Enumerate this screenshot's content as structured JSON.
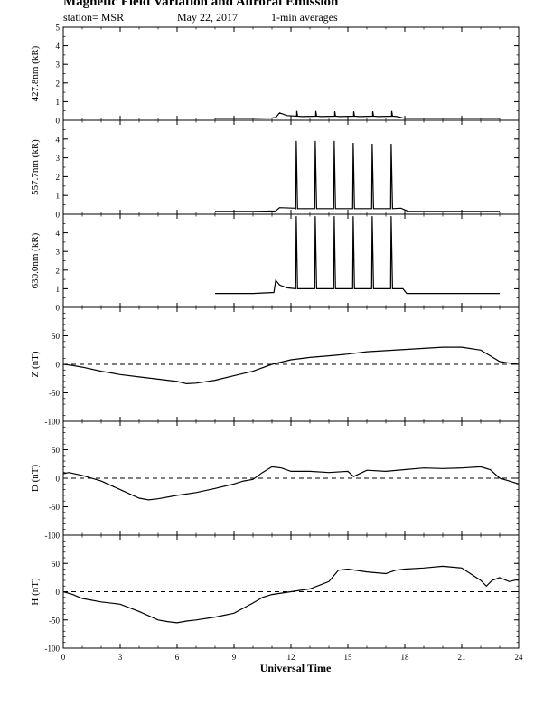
{
  "header": {
    "title": "Magnetic Field Variation and Auroral Emission",
    "station": "station= MSR",
    "date": "May 22, 2017",
    "averaging": "1-min averages"
  },
  "chart_data": [
    {
      "type": "line",
      "ylabel": "427.8nm (kR)",
      "ylim": [
        0,
        5
      ],
      "yticks": [
        "0",
        "1",
        "2",
        "3",
        "4",
        "5"
      ],
      "xlim": [
        0,
        24
      ],
      "zero_line": false,
      "series": [
        {
          "x": [
            8.0,
            9,
            10,
            11,
            11.2,
            11.4,
            11.8,
            12.3,
            12.31,
            12.35,
            12.6,
            13.3,
            13.31,
            13.35,
            13.6,
            14.3,
            14.31,
            14.35,
            14.6,
            15.3,
            15.31,
            15.35,
            15.6,
            16.3,
            16.31,
            16.35,
            16.6,
            17.3,
            17.31,
            17.35,
            17.6,
            18,
            20,
            23.0
          ],
          "y": [
            0.1,
            0.1,
            0.1,
            0.12,
            0.15,
            0.4,
            0.25,
            0.22,
            0.5,
            0.22,
            0.2,
            0.22,
            0.5,
            0.22,
            0.2,
            0.22,
            0.48,
            0.22,
            0.2,
            0.22,
            0.48,
            0.22,
            0.2,
            0.22,
            0.48,
            0.22,
            0.2,
            0.22,
            0.5,
            0.22,
            0.2,
            0.1,
            0.1,
            0.1
          ]
        }
      ]
    },
    {
      "type": "line",
      "ylabel": "557.7nm (kR)",
      "ylim": [
        0,
        5
      ],
      "yticks": [
        "0",
        "1",
        "2",
        "3",
        "4"
      ],
      "xlim": [
        0,
        24
      ],
      "zero_line": false,
      "series": [
        {
          "x": [
            8.0,
            10,
            11.2,
            11.4,
            12.2,
            12.25,
            12.28,
            12.35,
            13.2,
            13.25,
            13.28,
            13.35,
            14.2,
            14.25,
            14.28,
            14.35,
            15.2,
            15.25,
            15.28,
            15.35,
            16.2,
            16.25,
            16.28,
            16.35,
            17.2,
            17.25,
            17.28,
            17.35,
            17.8,
            18.2,
            20,
            23.0
          ],
          "y": [
            0.15,
            0.15,
            0.18,
            0.35,
            0.32,
            0.3,
            3.9,
            0.3,
            0.3,
            0.3,
            3.9,
            0.3,
            0.3,
            0.3,
            3.9,
            0.3,
            0.3,
            0.3,
            3.8,
            0.3,
            0.3,
            0.3,
            3.75,
            0.3,
            0.3,
            0.3,
            3.75,
            0.3,
            0.32,
            0.15,
            0.15,
            0.15
          ]
        }
      ]
    },
    {
      "type": "line",
      "ylabel": "630.0nm (kR)",
      "ylim": [
        0,
        5
      ],
      "yticks": [
        "0",
        "1",
        "2",
        "3",
        "4"
      ],
      "xlim": [
        0,
        24
      ],
      "zero_line": false,
      "series": [
        {
          "x": [
            8.0,
            10,
            11.1,
            11.2,
            11.4,
            11.8,
            12.25,
            12.28,
            12.35,
            13.25,
            13.28,
            13.35,
            14.25,
            14.28,
            14.35,
            15.25,
            15.28,
            15.35,
            16.25,
            16.28,
            16.35,
            17.25,
            17.28,
            17.35,
            17.9,
            18.1,
            20,
            23.0
          ],
          "y": [
            0.75,
            0.75,
            0.8,
            1.45,
            1.2,
            1.05,
            1.0,
            4.9,
            1.0,
            1.0,
            4.9,
            1.0,
            1.0,
            4.9,
            1.0,
            1.0,
            4.9,
            1.0,
            1.0,
            4.9,
            1.0,
            1.0,
            4.9,
            1.0,
            1.0,
            0.75,
            0.75,
            0.75
          ]
        }
      ]
    },
    {
      "type": "line",
      "ylabel": "Z (nT)",
      "ylim": [
        -100,
        100
      ],
      "yticks": [
        "-100",
        "-50",
        "0",
        "50"
      ],
      "xlim": [
        0,
        24
      ],
      "zero_line": true,
      "series": [
        {
          "x": [
            0,
            0.5,
            1,
            2,
            3,
            4,
            5,
            5.5,
            6,
            6.5,
            7,
            8,
            9,
            10,
            11,
            12,
            13,
            14,
            15,
            16,
            17,
            18,
            19,
            20,
            21,
            22,
            22.5,
            23,
            23.5,
            24
          ],
          "y": [
            0,
            -2,
            -5,
            -12,
            -18,
            -22,
            -26,
            -28,
            -30,
            -34,
            -33,
            -28,
            -20,
            -12,
            0,
            8,
            12,
            15,
            18,
            22,
            24,
            26,
            28,
            30,
            30,
            25,
            15,
            5,
            2,
            0
          ]
        }
      ]
    },
    {
      "type": "line",
      "ylabel": "D (nT)",
      "ylim": [
        -100,
        100
      ],
      "yticks": [
        "-100",
        "-50",
        "0",
        "50"
      ],
      "xlim": [
        0,
        24
      ],
      "zero_line": true,
      "series": [
        {
          "x": [
            0,
            0.3,
            1,
            2,
            3,
            4,
            4.5,
            5,
            6,
            7,
            8,
            9,
            9.5,
            10,
            10.5,
            11,
            11.5,
            12,
            13,
            14,
            15,
            15.3,
            16,
            17,
            18,
            19,
            20,
            21,
            22,
            22.5,
            23,
            23.5,
            24
          ],
          "y": [
            8,
            10,
            5,
            -5,
            -20,
            -35,
            -38,
            -36,
            -30,
            -25,
            -18,
            -10,
            -5,
            -2,
            10,
            20,
            18,
            12,
            12,
            10,
            12,
            3,
            14,
            12,
            15,
            18,
            17,
            18,
            20,
            15,
            0,
            -5,
            -10
          ]
        }
      ]
    },
    {
      "type": "line",
      "ylabel": "H (nT)",
      "ylim": [
        -100,
        100
      ],
      "yticks": [
        "-100",
        "-50",
        "0",
        "50"
      ],
      "xlim": [
        0,
        24
      ],
      "zero_line": true,
      "series": [
        {
          "x": [
            0,
            0.5,
            1,
            2,
            3,
            4,
            5,
            5.5,
            6,
            6.5,
            7,
            8,
            9,
            10,
            10.5,
            11,
            12,
            13,
            14,
            14.5,
            15,
            16,
            17,
            17.5,
            18,
            19,
            20,
            21,
            22,
            22.3,
            22.6,
            23,
            23.5,
            24
          ],
          "y": [
            0,
            -5,
            -12,
            -18,
            -22,
            -35,
            -50,
            -53,
            -55,
            -52,
            -50,
            -45,
            -38,
            -20,
            -10,
            -5,
            0,
            5,
            18,
            38,
            40,
            35,
            32,
            38,
            40,
            42,
            45,
            42,
            20,
            10,
            20,
            25,
            18,
            22
          ]
        }
      ]
    }
  ],
  "x_axis": {
    "label": "Universal Time",
    "ticks": [
      "0",
      "3",
      "6",
      "9",
      "12",
      "15",
      "18",
      "21",
      "24"
    ],
    "range": [
      0,
      24
    ]
  }
}
